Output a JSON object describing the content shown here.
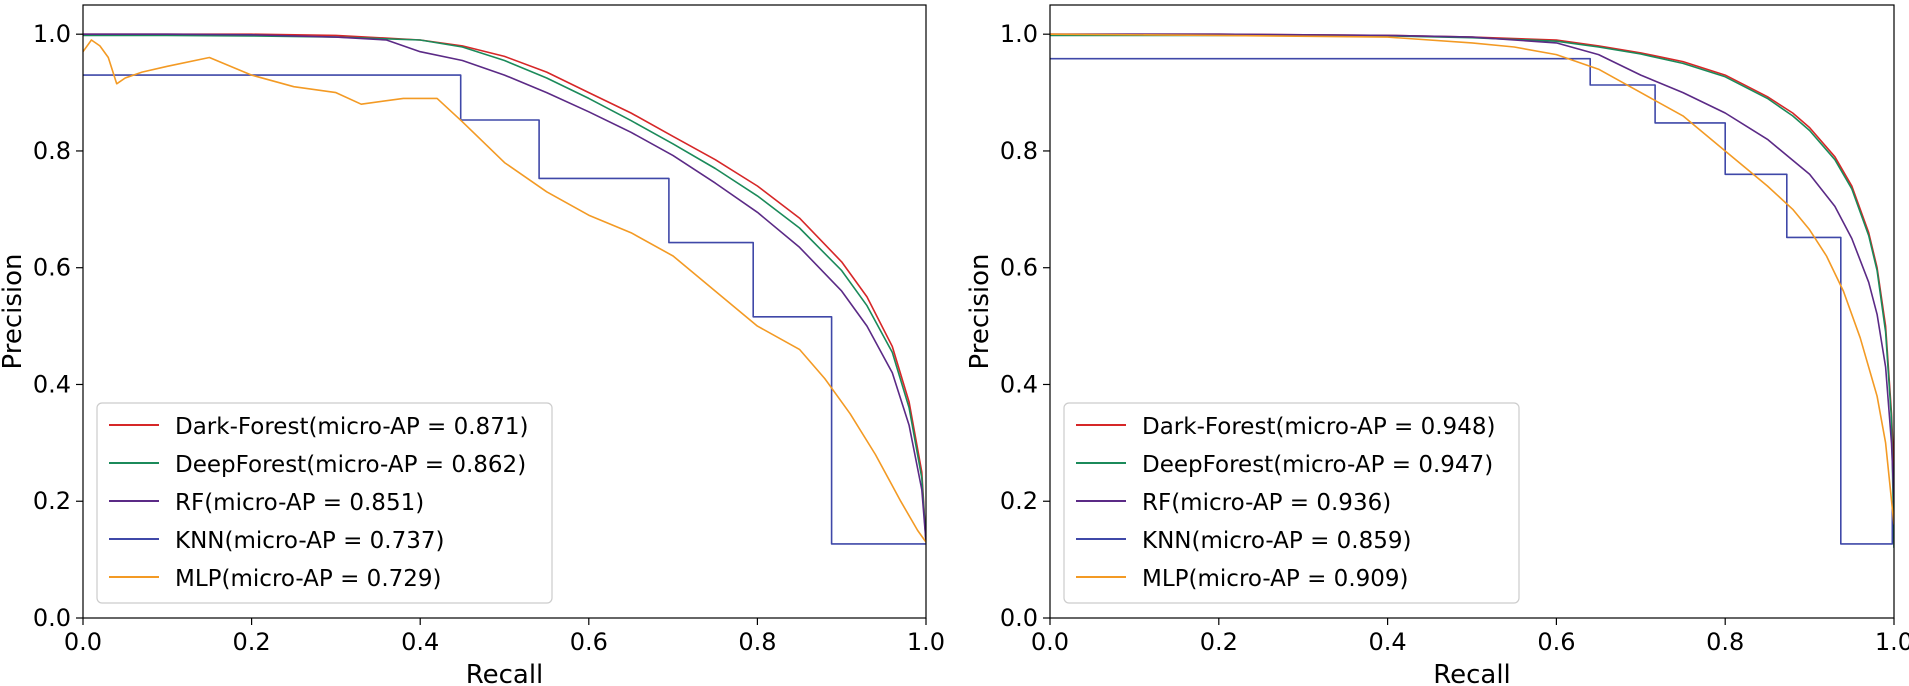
{
  "chart_data": [
    {
      "type": "line",
      "title": "",
      "xlabel": "Recall",
      "ylabel": "Precision",
      "xlim": [
        0,
        1
      ],
      "ylim": [
        0,
        1.05
      ],
      "xticks": [
        "0.0",
        "0.2",
        "0.4",
        "0.6",
        "0.8",
        "1.0"
      ],
      "yticks": [
        "0.0",
        "0.2",
        "0.4",
        "0.6",
        "0.8",
        "1.0"
      ],
      "grid": false,
      "legend_position": "lower-left",
      "series": [
        {
          "name": "Dark-Forest(micro-AP = 0.871)",
          "color": "#d62728",
          "x": [
            0,
            0.1,
            0.2,
            0.3,
            0.4,
            0.45,
            0.5,
            0.55,
            0.6,
            0.65,
            0.7,
            0.75,
            0.8,
            0.85,
            0.9,
            0.93,
            0.96,
            0.98,
            0.995,
            1.0
          ],
          "y": [
            1.0,
            1.0,
            1.0,
            0.998,
            0.99,
            0.98,
            0.962,
            0.935,
            0.9,
            0.865,
            0.825,
            0.785,
            0.74,
            0.685,
            0.61,
            0.55,
            0.465,
            0.37,
            0.25,
            0.13
          ]
        },
        {
          "name": "DeepForest(micro-AP = 0.862)",
          "color": "#1b8a5a",
          "x": [
            0,
            0.1,
            0.2,
            0.3,
            0.4,
            0.45,
            0.5,
            0.55,
            0.6,
            0.65,
            0.7,
            0.75,
            0.8,
            0.85,
            0.9,
            0.93,
            0.96,
            0.98,
            0.995,
            1.0
          ],
          "y": [
            0.998,
            0.998,
            0.997,
            0.995,
            0.99,
            0.978,
            0.955,
            0.925,
            0.89,
            0.852,
            0.812,
            0.77,
            0.723,
            0.668,
            0.595,
            0.535,
            0.455,
            0.36,
            0.24,
            0.13
          ]
        },
        {
          "name": "RF(micro-AP = 0.851)",
          "color": "#5b2a86",
          "x": [
            0,
            0.1,
            0.2,
            0.3,
            0.36,
            0.4,
            0.45,
            0.5,
            0.55,
            0.6,
            0.65,
            0.7,
            0.75,
            0.8,
            0.85,
            0.9,
            0.93,
            0.96,
            0.98,
            0.995,
            1.0
          ],
          "y": [
            1.0,
            1.0,
            0.999,
            0.995,
            0.99,
            0.97,
            0.955,
            0.93,
            0.9,
            0.867,
            0.832,
            0.792,
            0.745,
            0.695,
            0.635,
            0.56,
            0.5,
            0.42,
            0.33,
            0.22,
            0.13
          ]
        },
        {
          "name": "KNN(micro-AP = 0.737)",
          "color": "#3f48a8",
          "x": [
            0,
            0.448,
            0.448,
            0.541,
            0.541,
            0.695,
            0.695,
            0.795,
            0.795,
            0.888,
            0.888,
            1.0,
            1.0
          ],
          "y": [
            0.93,
            0.93,
            0.853,
            0.853,
            0.753,
            0.753,
            0.643,
            0.643,
            0.516,
            0.516,
            0.127,
            0.127,
            0.127
          ]
        },
        {
          "name": "MLP(micro-AP = 0.729)",
          "color": "#f39a24",
          "x": [
            0,
            0.01,
            0.02,
            0.03,
            0.04,
            0.05,
            0.07,
            0.1,
            0.15,
            0.2,
            0.25,
            0.3,
            0.33,
            0.38,
            0.42,
            0.45,
            0.5,
            0.55,
            0.6,
            0.65,
            0.7,
            0.75,
            0.8,
            0.85,
            0.88,
            0.91,
            0.94,
            0.97,
            0.99,
            1.0
          ],
          "y": [
            0.97,
            0.99,
            0.98,
            0.96,
            0.915,
            0.925,
            0.935,
            0.945,
            0.96,
            0.93,
            0.91,
            0.9,
            0.88,
            0.89,
            0.89,
            0.85,
            0.78,
            0.73,
            0.69,
            0.66,
            0.62,
            0.56,
            0.5,
            0.46,
            0.41,
            0.35,
            0.28,
            0.2,
            0.15,
            0.13
          ]
        }
      ]
    },
    {
      "type": "line",
      "title": "",
      "xlabel": "Recall",
      "ylabel": "Precision",
      "xlim": [
        0,
        1
      ],
      "ylim": [
        0,
        1.05
      ],
      "xticks": [
        "0.0",
        "0.2",
        "0.4",
        "0.6",
        "0.8",
        "1.0"
      ],
      "yticks": [
        "0.0",
        "0.2",
        "0.4",
        "0.6",
        "0.8",
        "1.0"
      ],
      "grid": false,
      "legend_position": "lower-left",
      "series": [
        {
          "name": "Dark-Forest(micro-AP = 0.948)",
          "color": "#d62728",
          "x": [
            0,
            0.2,
            0.4,
            0.5,
            0.6,
            0.65,
            0.7,
            0.75,
            0.8,
            0.85,
            0.88,
            0.9,
            0.93,
            0.95,
            0.97,
            0.98,
            0.99,
            0.997,
            1.0
          ],
          "y": [
            1.0,
            1.0,
            0.998,
            0.995,
            0.99,
            0.98,
            0.968,
            0.953,
            0.93,
            0.893,
            0.865,
            0.84,
            0.79,
            0.74,
            0.66,
            0.6,
            0.5,
            0.35,
            0.25
          ]
        },
        {
          "name": "DeepForest(micro-AP = 0.947)",
          "color": "#1b8a5a",
          "x": [
            0,
            0.2,
            0.4,
            0.5,
            0.6,
            0.65,
            0.7,
            0.75,
            0.8,
            0.85,
            0.88,
            0.9,
            0.93,
            0.95,
            0.97,
            0.98,
            0.99,
            0.997,
            1.0
          ],
          "y": [
            0.998,
            0.998,
            0.997,
            0.994,
            0.988,
            0.978,
            0.966,
            0.95,
            0.927,
            0.89,
            0.86,
            0.835,
            0.785,
            0.735,
            0.655,
            0.595,
            0.49,
            0.34,
            0.12
          ]
        },
        {
          "name": "RF(micro-AP = 0.936)",
          "color": "#5b2a86",
          "x": [
            0,
            0.2,
            0.4,
            0.5,
            0.6,
            0.65,
            0.7,
            0.75,
            0.8,
            0.85,
            0.9,
            0.93,
            0.95,
            0.97,
            0.98,
            0.99,
            0.997,
            1.0
          ],
          "y": [
            1.0,
            1.0,
            0.998,
            0.995,
            0.985,
            0.965,
            0.93,
            0.9,
            0.865,
            0.82,
            0.76,
            0.705,
            0.65,
            0.575,
            0.52,
            0.43,
            0.3,
            0.2
          ]
        },
        {
          "name": "KNN(micro-AP = 0.859)",
          "color": "#3f48a8",
          "x": [
            0,
            0.64,
            0.64,
            0.717,
            0.717,
            0.8,
            0.8,
            0.873,
            0.873,
            0.937,
            0.937,
            0.998,
            0.998
          ],
          "y": [
            0.958,
            0.958,
            0.913,
            0.913,
            0.848,
            0.848,
            0.76,
            0.76,
            0.652,
            0.652,
            0.127,
            0.127,
            0.2
          ]
        },
        {
          "name": "MLP(micro-AP = 0.909)",
          "color": "#f39a24",
          "x": [
            0,
            0.2,
            0.4,
            0.5,
            0.55,
            0.6,
            0.65,
            0.7,
            0.75,
            0.8,
            0.85,
            0.88,
            0.9,
            0.92,
            0.94,
            0.96,
            0.98,
            0.99,
            1.0
          ],
          "y": [
            1.0,
            0.998,
            0.995,
            0.985,
            0.978,
            0.965,
            0.94,
            0.9,
            0.86,
            0.8,
            0.74,
            0.7,
            0.665,
            0.62,
            0.56,
            0.48,
            0.38,
            0.3,
            0.16
          ]
        }
      ]
    }
  ]
}
